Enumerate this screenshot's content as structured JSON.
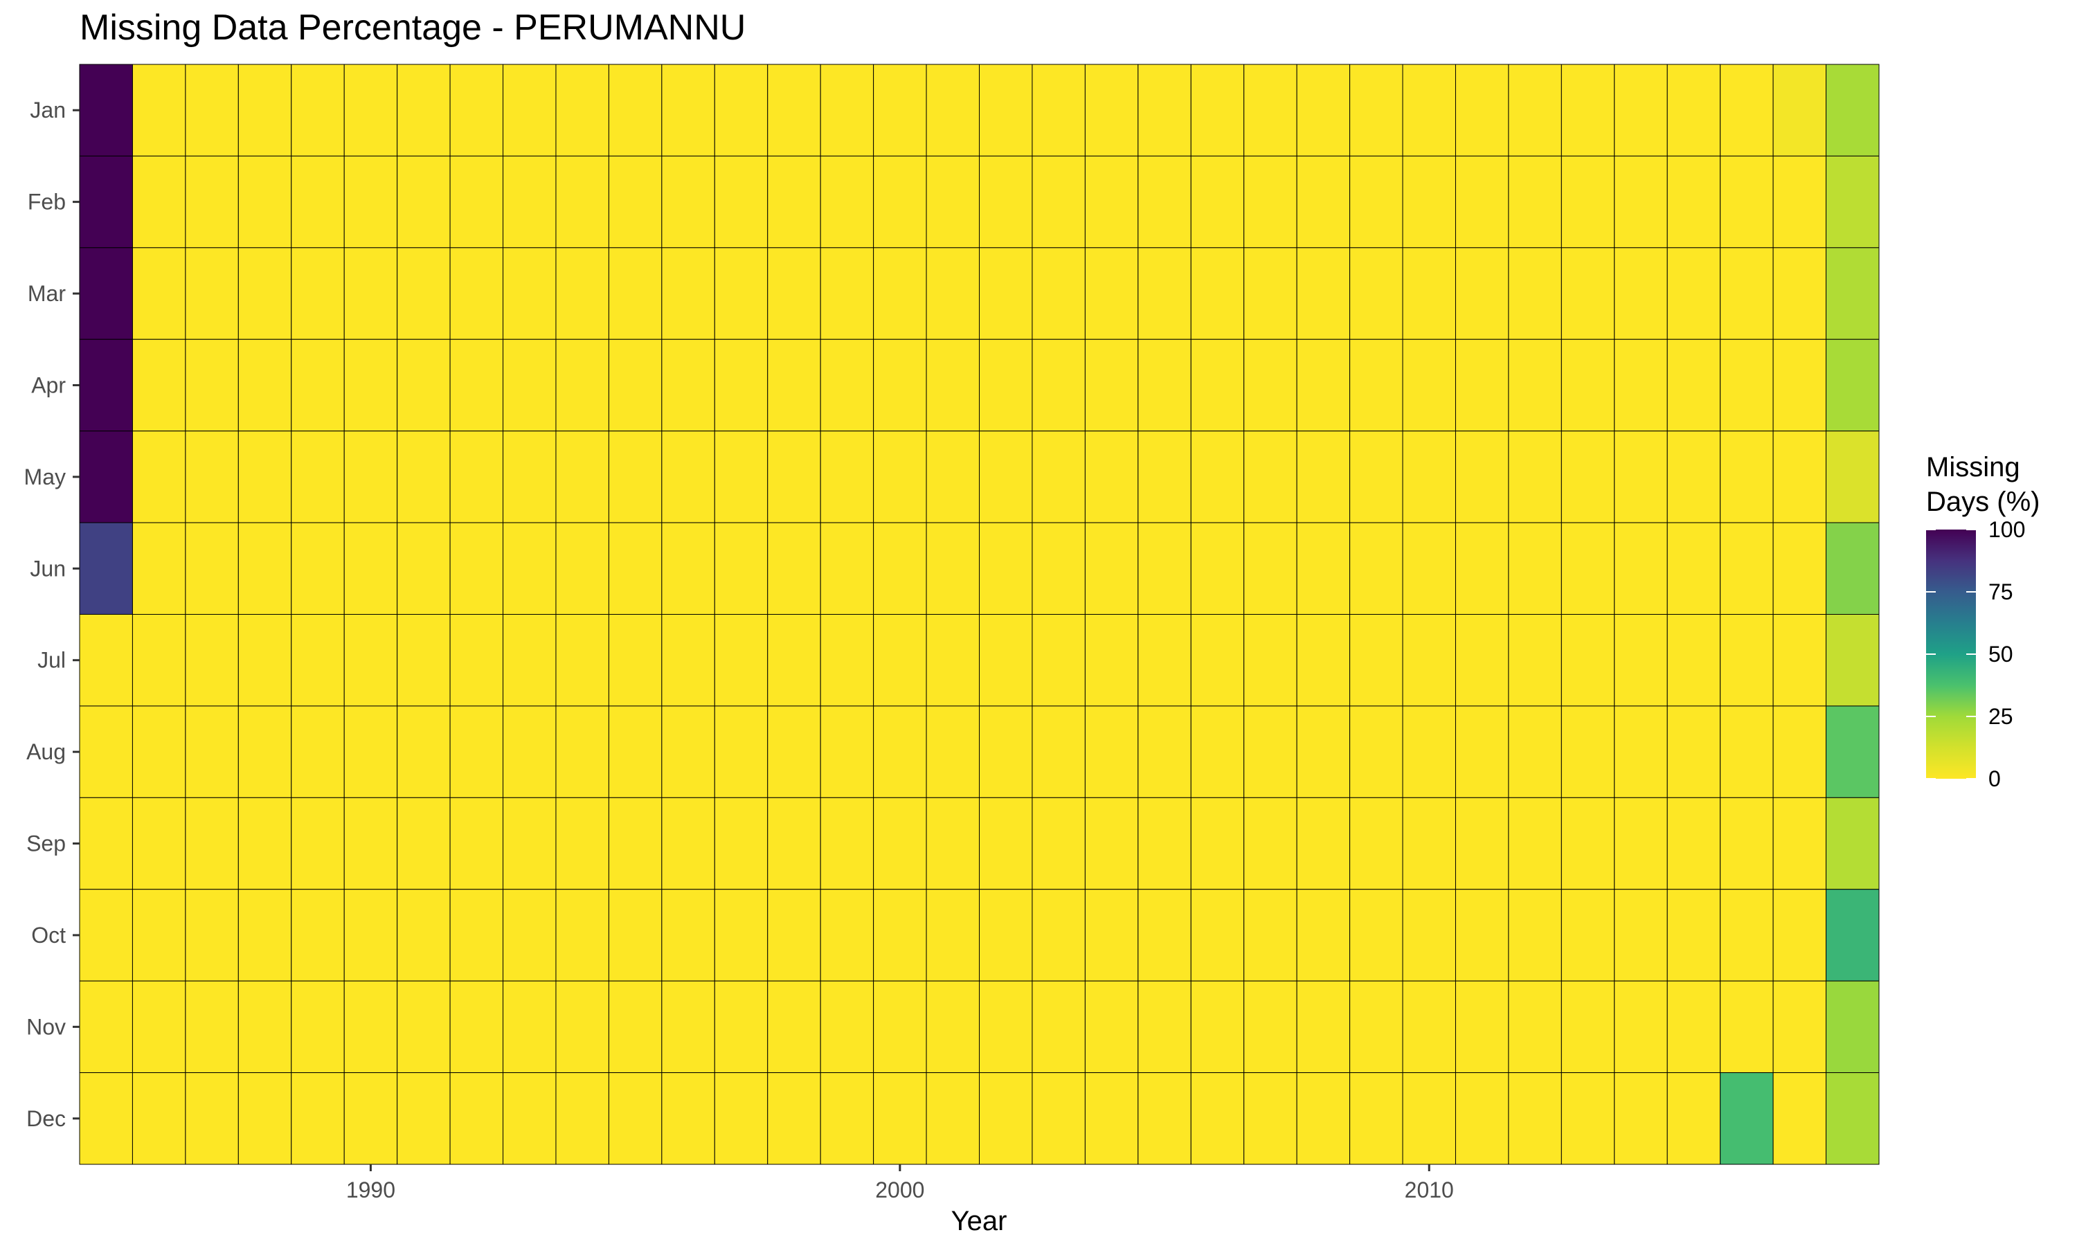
{
  "chart_data": {
    "type": "heatmap",
    "title": "Missing Data Percentage - PERUMANNU",
    "xlabel": "Year",
    "ylabel": "",
    "years": [
      1985,
      1986,
      1987,
      1988,
      1989,
      1990,
      1991,
      1992,
      1993,
      1994,
      1995,
      1996,
      1997,
      1998,
      1999,
      2000,
      2001,
      2002,
      2003,
      2004,
      2005,
      2006,
      2007,
      2008,
      2009,
      2010,
      2011,
      2012,
      2013,
      2014,
      2015,
      2016,
      2017,
      2018
    ],
    "months": [
      "Jan",
      "Feb",
      "Mar",
      "Apr",
      "May",
      "Jun",
      "Jul",
      "Aug",
      "Sep",
      "Oct",
      "Nov",
      "Dec"
    ],
    "x_ticks": [
      1990,
      2000,
      2010
    ],
    "x_tick_labels": [
      "1990",
      "2000",
      "2010"
    ],
    "legend": {
      "title_lines": [
        "Missing",
        "Days (%)"
      ],
      "ticks": [
        100,
        75,
        50,
        25,
        0
      ],
      "tick_labels": [
        "100",
        "75",
        "50",
        "25",
        "0"
      ],
      "range": [
        0,
        100
      ],
      "placement": "right",
      "palette": "viridis (reversed: 0 = yellow, 100 = purple)"
    },
    "default_value": 0,
    "nonzero_cells": [
      {
        "year": 1985,
        "month": "Jan",
        "value": 100
      },
      {
        "year": 1985,
        "month": "Feb",
        "value": 100
      },
      {
        "year": 1985,
        "month": "Mar",
        "value": 100
      },
      {
        "year": 1985,
        "month": "Apr",
        "value": 100
      },
      {
        "year": 1985,
        "month": "May",
        "value": 100
      },
      {
        "year": 1985,
        "month": "Jun",
        "value": 83
      },
      {
        "year": 2017,
        "month": "Jan",
        "value": 3
      },
      {
        "year": 2016,
        "month": "Dec",
        "value": 39
      },
      {
        "year": 2018,
        "month": "Jan",
        "value": 23
      },
      {
        "year": 2018,
        "month": "Feb",
        "value": 18
      },
      {
        "year": 2018,
        "month": "Mar",
        "value": 21
      },
      {
        "year": 2018,
        "month": "Apr",
        "value": 23
      },
      {
        "year": 2018,
        "month": "May",
        "value": 10
      },
      {
        "year": 2018,
        "month": "Jun",
        "value": 29
      },
      {
        "year": 2018,
        "month": "Jul",
        "value": 16
      },
      {
        "year": 2018,
        "month": "Aug",
        "value": 35
      },
      {
        "year": 2018,
        "month": "Sep",
        "value": 20
      },
      {
        "year": 2018,
        "month": "Oct",
        "value": 42
      },
      {
        "year": 2018,
        "month": "Nov",
        "value": 26
      },
      {
        "year": 2018,
        "month": "Dec",
        "value": 23
      }
    ]
  }
}
